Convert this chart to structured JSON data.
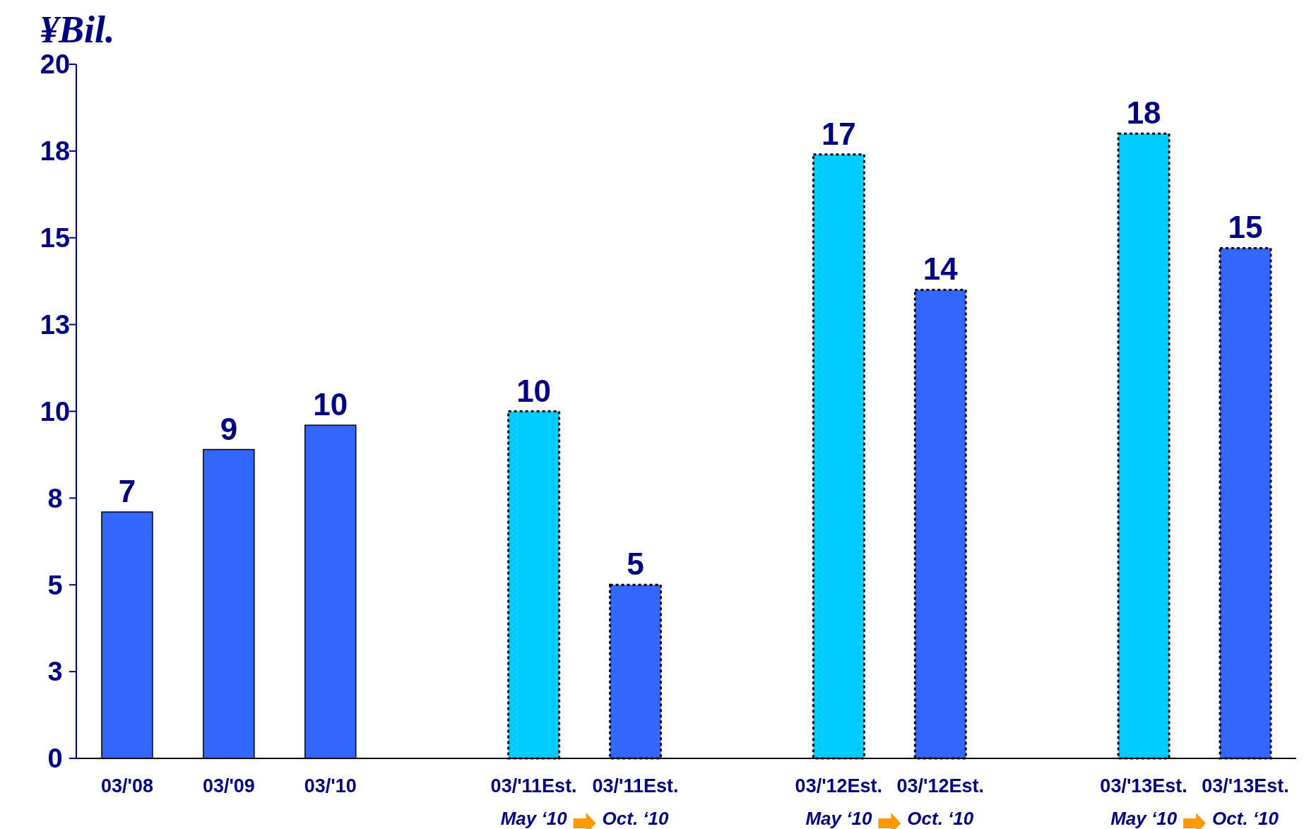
{
  "chart_data": {
    "type": "bar",
    "ylabel": "¥Bil.",
    "categories": [
      "03/'08",
      "03/'09",
      "03/'10",
      null,
      "03/'11Est.\nMay ‘10",
      "03/'11Est.\nOct. ‘10",
      null,
      "03/'12Est.\nMay ‘10",
      "03/'12Est.\nOct. ‘10",
      null,
      "03/'13Est.\nMay ‘10",
      "03/'13Est.\nOct. ‘10"
    ],
    "values": [
      7.1,
      8.9,
      9.6,
      null,
      10,
      5,
      null,
      17.4,
      13.5,
      null,
      18,
      14.7
    ],
    "value_labels": [
      "7",
      "9",
      "10",
      null,
      "10",
      "5",
      null,
      "17",
      "14",
      null,
      "18",
      "15"
    ],
    "colors": [
      "#3366ff",
      "#3366ff",
      "#3366ff",
      null,
      "#00ccff",
      "#3366ff",
      null,
      "#00ccff",
      "#3366ff",
      null,
      "#00ccff",
      "#3366ff"
    ],
    "ylim": [
      0,
      20
    ],
    "yticks": [
      0,
      {
        "value": 2.5,
        "label": "3"
      },
      5,
      {
        "value": 7.5,
        "label": "8"
      },
      10,
      {
        "value": 12.5,
        "label": "13"
      },
      15,
      {
        "value": 17.5,
        "label": "18"
      },
      20
    ]
  }
}
